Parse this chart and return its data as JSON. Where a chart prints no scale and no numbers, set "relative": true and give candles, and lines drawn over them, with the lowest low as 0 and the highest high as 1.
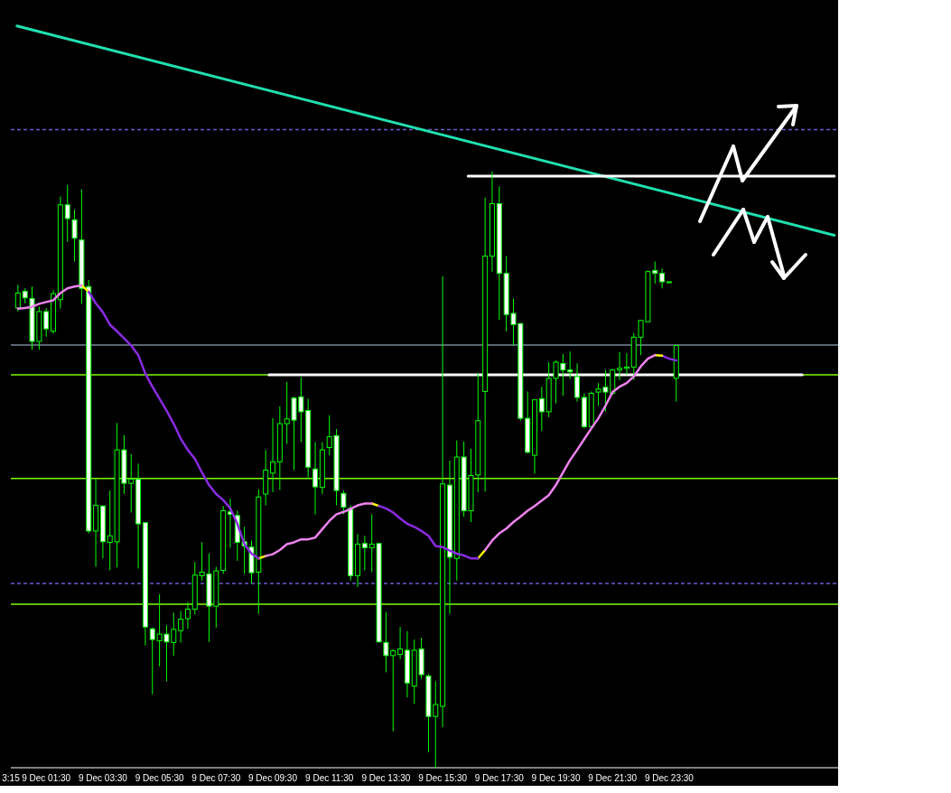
{
  "chart_data": {
    "type": "candlestick",
    "relative": true,
    "marker": "none",
    "line_style": "solid",
    "xlim": [
      "--12-09T00:15",
      "--12-10T05:28"
    ],
    "xticks": [
      {
        "value": "--12-09T00:15",
        "label": "3:15"
      },
      {
        "value": "--12-09T01:30",
        "label": "9 Dec 01:30"
      },
      {
        "value": "--12-09T03:30",
        "label": "9 Dec 03:30"
      },
      {
        "value": "--12-09T05:30",
        "label": "9 Dec 05:30"
      },
      {
        "value": "--12-09T07:30",
        "label": "9 Dec 07:30"
      },
      {
        "value": "--12-09T09:30",
        "label": "9 Dec 09:30"
      },
      {
        "value": "--12-09T11:30",
        "label": "9 Dec 11:30"
      },
      {
        "value": "--12-09T13:30",
        "label": "9 Dec 13:30"
      },
      {
        "value": "--12-09T15:30",
        "label": "9 Dec 15:30"
      },
      {
        "value": "--12-09T17:30",
        "label": "9 Dec 17:30"
      },
      {
        "value": "--12-09T19:30",
        "label": "9 Dec 19:30"
      },
      {
        "value": "--12-09T21:30",
        "label": "9 Dec 21:30"
      },
      {
        "value": "--12-09T23:30",
        "label": "9 Dec 23:30"
      }
    ],
    "x": [
      "--12-09T00:30",
      "--12-09T00:45",
      "--12-09T01:00",
      "--12-09T01:15",
      "--12-09T01:30",
      "--12-09T01:45",
      "--12-09T02:00",
      "--12-09T02:15",
      "--12-09T02:30",
      "--12-09T02:45",
      "--12-09T03:00",
      "--12-09T03:15",
      "--12-09T03:30",
      "--12-09T03:45",
      "--12-09T04:00",
      "--12-09T04:15",
      "--12-09T04:30",
      "--12-09T04:45",
      "--12-09T05:00",
      "--12-09T05:15",
      "--12-09T05:30",
      "--12-09T05:45",
      "--12-09T06:00",
      "--12-09T06:15",
      "--12-09T06:30",
      "--12-09T06:45",
      "--12-09T07:00",
      "--12-09T07:15",
      "--12-09T07:30",
      "--12-09T07:45",
      "--12-09T08:00",
      "--12-09T08:15",
      "--12-09T08:30",
      "--12-09T08:45",
      "--12-09T09:00",
      "--12-09T09:15",
      "--12-09T09:30",
      "--12-09T09:45",
      "--12-09T10:00",
      "--12-09T10:15",
      "--12-09T10:30",
      "--12-09T10:45",
      "--12-09T11:00",
      "--12-09T11:15",
      "--12-09T11:30",
      "--12-09T11:45",
      "--12-09T12:00",
      "--12-09T12:15",
      "--12-09T12:30",
      "--12-09T12:45",
      "--12-09T13:00",
      "--12-09T13:15",
      "--12-09T13:30",
      "--12-09T13:45",
      "--12-09T14:00",
      "--12-09T14:15",
      "--12-09T14:30",
      "--12-09T14:45",
      "--12-09T15:00",
      "--12-09T15:15",
      "--12-09T15:30",
      "--12-09T15:45",
      "--12-09T16:00",
      "--12-09T16:15",
      "--12-09T16:30",
      "--12-09T16:45",
      "--12-09T17:00",
      "--12-09T17:15",
      "--12-09T17:30",
      "--12-09T17:45",
      "--12-09T18:00",
      "--12-09T18:15",
      "--12-09T18:30",
      "--12-09T18:45",
      "--12-09T19:00",
      "--12-09T19:15",
      "--12-09T19:30",
      "--12-09T19:45",
      "--12-09T20:00",
      "--12-09T20:15",
      "--12-09T20:30",
      "--12-09T20:45",
      "--12-09T21:00",
      "--12-09T21:15",
      "--12-09T21:30",
      "--12-09T21:45",
      "--12-09T22:00",
      "--12-09T22:15",
      "--12-09T22:30",
      "--12-09T22:45",
      "--12-09T23:00",
      "--12-09T23:15",
      "--12-09T23:30",
      "--12-09T23:45"
    ],
    "ref_lines": [
      {
        "axis": "y",
        "value": 1.07,
        "color": "#6a5acd",
        "line_style": "dashed"
      },
      {
        "axis": "y",
        "value": 0.709,
        "color": "#778899",
        "line_style": "solid"
      },
      {
        "axis": "y",
        "value": 0.659,
        "color": "#7cfc00",
        "line_style": "solid"
      },
      {
        "axis": "y",
        "value": 0.485,
        "color": "#7cfc00",
        "line_style": "solid"
      },
      {
        "axis": "y",
        "value": 0.309,
        "color": "#6a5acd",
        "line_style": "dashed"
      },
      {
        "axis": "y",
        "value": 0.274,
        "color": "#7cfc00",
        "line_style": "solid"
      }
    ],
    "series": [
      {
        "type": "line",
        "color": "#ee82ee",
        "values": [
          0.77,
          0.771,
          0.773,
          0.778,
          0.781,
          0.784,
          0.796,
          0.804,
          0.807,
          0.809,
          null,
          null,
          null,
          null,
          null,
          null,
          null,
          null,
          null,
          null,
          null,
          null,
          null,
          null,
          null,
          null,
          null,
          null,
          null,
          null,
          null,
          null,
          null,
          null,
          null,
          0.355,
          0.358,
          0.365,
          0.375,
          0.378,
          0.383,
          0.383,
          0.386,
          0.4,
          0.414,
          0.425,
          0.429,
          0.434,
          0.44,
          0.443,
          0.443,
          null,
          null,
          null,
          null,
          null,
          null,
          null,
          null,
          null,
          null,
          null,
          null,
          null,
          null,
          null,
          0.365,
          0.381,
          0.393,
          0.401,
          0.412,
          0.421,
          0.431,
          0.439,
          0.448,
          0.457,
          0.474,
          0.495,
          0.516,
          0.533,
          0.551,
          0.569,
          0.586,
          0.607,
          0.63,
          0.639,
          0.645,
          0.656,
          0.673,
          0.686,
          0.692,
          null,
          null,
          null
        ]
      },
      {
        "type": "line",
        "color": "#8a2be2",
        "values": [
          null,
          null,
          null,
          null,
          null,
          null,
          null,
          null,
          null,
          null,
          0.798,
          0.779,
          0.764,
          0.743,
          0.732,
          0.72,
          0.708,
          0.692,
          0.661,
          0.639,
          0.619,
          0.599,
          0.577,
          0.552,
          0.533,
          0.518,
          0.495,
          0.474,
          0.459,
          0.449,
          0.435,
          0.409,
          0.375,
          0.359,
          0.351,
          null,
          null,
          null,
          null,
          null,
          null,
          null,
          null,
          null,
          null,
          null,
          null,
          null,
          null,
          null,
          null,
          0.439,
          0.435,
          0.428,
          0.418,
          0.409,
          0.404,
          0.397,
          0.389,
          0.372,
          0.37,
          0.364,
          0.359,
          0.356,
          0.351,
          0.351,
          null,
          null,
          null,
          null,
          null,
          null,
          null,
          null,
          null,
          null,
          null,
          null,
          null,
          null,
          null,
          null,
          null,
          null,
          null,
          null,
          null,
          null,
          null,
          null,
          null,
          null,
          null,
          null
        ]
      },
      {
        "type": "line",
        "color": "#ffff00",
        "values": [
          null,
          null,
          null,
          null,
          null,
          null,
          null,
          null,
          null,
          0.809,
          0.798,
          null,
          null,
          null,
          null,
          null,
          null,
          null,
          null,
          null,
          null,
          null,
          null,
          null,
          null,
          null,
          null,
          null,
          null,
          null,
          null,
          null,
          null,
          null,
          0.351,
          0.355,
          null,
          null,
          null,
          null,
          null,
          null,
          null,
          null,
          null,
          null,
          null,
          null,
          null,
          null,
          0.443,
          0.439,
          null,
          null,
          null,
          null,
          null,
          null,
          null,
          null,
          null,
          null,
          null,
          null,
          null,
          0.351,
          0.365,
          null,
          null,
          null,
          null,
          null,
          null,
          null,
          null,
          null,
          null,
          null,
          null,
          null,
          null,
          null,
          null,
          null,
          null,
          null,
          null,
          null,
          null,
          null,
          0.692,
          0.691,
          null,
          null
        ]
      },
      {
        "type": "line",
        "color": "#8a2be2",
        "values": [
          null,
          null,
          null,
          null,
          null,
          null,
          null,
          null,
          null,
          null,
          null,
          null,
          null,
          null,
          null,
          null,
          null,
          null,
          null,
          null,
          null,
          null,
          null,
          null,
          null,
          null,
          null,
          null,
          null,
          null,
          null,
          null,
          null,
          null,
          null,
          null,
          null,
          null,
          null,
          null,
          null,
          null,
          null,
          null,
          null,
          null,
          null,
          null,
          null,
          null,
          null,
          null,
          null,
          null,
          null,
          null,
          null,
          null,
          null,
          null,
          null,
          null,
          null,
          null,
          null,
          null,
          null,
          null,
          null,
          null,
          null,
          null,
          null,
          null,
          null,
          null,
          null,
          null,
          null,
          null,
          null,
          null,
          null,
          null,
          null,
          null,
          null,
          null,
          null,
          null,
          null,
          0.691,
          0.686,
          0.683
        ]
      },
      {
        "type": "line",
        "color": "#20e0b0",
        "x": [
          "--12-09T00:28",
          "--12-10T05:20"
        ],
        "values": [
          1.244,
          0.893
        ]
      },
      {
        "type": "line",
        "color": "#ffffff",
        "x": [
          "--12-09T16:24",
          "--12-10T05:20"
        ],
        "values": [
          0.992,
          0.992
        ]
      },
      {
        "type": "line",
        "color": "#ffffff",
        "x": [
          "--12-09T09:22",
          "--12-10T04:12"
        ],
        "values": [
          0.659,
          0.659
        ]
      },
      {
        "color": "#00ff00",
        "ohlc": [
          [
            0.771,
            0.81,
            0.765,
            0.796
          ],
          [
            0.799,
            0.804,
            0.779,
            0.788
          ],
          [
            0.787,
            0.807,
            0.701,
            0.715
          ],
          [
            0.715,
            0.773,
            0.701,
            0.765
          ],
          [
            0.765,
            0.771,
            0.723,
            0.736
          ],
          [
            0.732,
            0.801,
            0.728,
            0.795
          ],
          [
            0.785,
            0.958,
            0.77,
            0.944
          ],
          [
            0.944,
            0.977,
            0.882,
            0.921
          ],
          [
            0.919,
            0.936,
            0.849,
            0.888
          ],
          [
            0.885,
            0.97,
            0.778,
            0.804
          ],
          [
            0.807,
            0.818,
            0.393,
            0.397
          ],
          [
            0.397,
            0.484,
            0.337,
            0.44
          ],
          [
            0.439,
            0.44,
            0.351,
            0.379
          ],
          [
            0.378,
            0.465,
            0.331,
            0.389
          ],
          [
            0.379,
            0.578,
            0.336,
            0.533
          ],
          [
            0.533,
            0.558,
            0.459,
            0.477
          ],
          [
            0.477,
            0.526,
            0.428,
            0.484
          ],
          [
            0.484,
            0.51,
            0.334,
            0.409
          ],
          [
            0.411,
            0.411,
            0.205,
            0.236
          ],
          [
            0.233,
            0.235,
            0.123,
            0.215
          ],
          [
            0.213,
            0.291,
            0.17,
            0.224
          ],
          [
            0.224,
            0.239,
            0.145,
            0.211
          ],
          [
            0.21,
            0.26,
            0.188,
            0.232
          ],
          [
            0.23,
            0.263,
            0.21,
            0.249
          ],
          [
            0.25,
            0.278,
            0.233,
            0.266
          ],
          [
            0.266,
            0.345,
            0.257,
            0.323
          ],
          [
            0.322,
            0.378,
            0.314,
            0.328
          ],
          [
            0.325,
            0.359,
            0.211,
            0.271
          ],
          [
            0.271,
            0.337,
            0.235,
            0.33
          ],
          [
            0.331,
            0.439,
            0.325,
            0.431
          ],
          [
            0.429,
            0.451,
            0.369,
            0.425
          ],
          [
            0.423,
            0.431,
            0.347,
            0.378
          ],
          [
            0.379,
            0.404,
            0.325,
            0.372
          ],
          [
            0.37,
            0.381,
            0.309,
            0.327
          ],
          [
            0.328,
            0.467,
            0.258,
            0.454
          ],
          [
            0.459,
            0.533,
            0.44,
            0.499
          ],
          [
            0.494,
            0.586,
            0.462,
            0.513
          ],
          [
            0.513,
            0.606,
            0.466,
            0.577
          ],
          [
            0.577,
            0.647,
            0.543,
            0.585
          ],
          [
            0.62,
            0.622,
            0.499,
            0.583
          ],
          [
            0.622,
            0.655,
            0.546,
            0.597
          ],
          [
            0.599,
            0.619,
            0.484,
            0.504
          ],
          [
            0.501,
            0.546,
            0.425,
            0.471
          ],
          [
            0.47,
            0.546,
            0.459,
            0.533
          ],
          [
            0.537,
            0.591,
            0.524,
            0.555
          ],
          [
            0.557,
            0.568,
            0.44,
            0.465
          ],
          [
            0.46,
            0.465,
            0.425,
            0.437
          ],
          [
            0.435,
            0.44,
            0.314,
            0.322
          ],
          [
            0.322,
            0.392,
            0.303,
            0.375
          ],
          [
            0.376,
            0.389,
            0.331,
            0.369
          ],
          [
            0.369,
            0.425,
            0.328,
            0.375
          ],
          [
            0.376,
            0.376,
            0.21,
            0.211
          ],
          [
            0.21,
            0.261,
            0.16,
            0.188
          ],
          [
            0.188,
            0.199,
            0.061,
            0.196
          ],
          [
            0.19,
            0.236,
            0.182,
            0.199
          ],
          [
            0.197,
            0.229,
            0.118,
            0.142
          ],
          [
            0.137,
            0.215,
            0.107,
            0.197
          ],
          [
            0.199,
            0.218,
            0.149,
            0.156
          ],
          [
            0.154,
            0.157,
            0.026,
            0.086
          ],
          [
            0.086,
            0.145,
            0,
            0.106
          ],
          [
            0.103,
            0.824,
            0.068,
            0.476
          ],
          [
            0.474,
            0.515,
            0.258,
            0.353
          ],
          [
            0.351,
            0.549,
            0.314,
            0.521
          ],
          [
            0.521,
            0.547,
            0.421,
            0.431
          ],
          [
            0.431,
            0.535,
            0.412,
            0.49
          ],
          [
            0.491,
            0.662,
            0.462,
            0.582
          ],
          [
            0.631,
            0.956,
            0.463,
            0.858
          ],
          [
            0.858,
            1,
            0.832,
            0.946
          ],
          [
            0.946,
            0.975,
            0.751,
            0.829
          ],
          [
            0.829,
            0.858,
            0.732,
            0.76
          ],
          [
            0.762,
            0.787,
            0.708,
            0.743
          ],
          [
            0.745,
            0.745,
            0.582,
            0.586
          ],
          [
            0.586,
            0.631,
            0.527,
            0.529
          ],
          [
            0.524,
            0.617,
            0.493,
            0.617
          ],
          [
            0.619,
            0.639,
            0.565,
            0.597
          ],
          [
            0.597,
            0.68,
            0.588,
            0.653
          ],
          [
            0.653,
            0.683,
            0.611,
            0.68
          ],
          [
            0.678,
            0.694,
            0.624,
            0.667
          ],
          [
            0.667,
            0.698,
            0.652,
            0.664
          ],
          [
            0.656,
            0.678,
            0.614,
            0.621
          ],
          [
            0.621,
            0.628,
            0.569,
            0.572
          ],
          [
            0.572,
            0.631,
            0.569,
            0.628
          ],
          [
            0.63,
            0.645,
            0.607,
            0.635
          ],
          [
            0.638,
            0.667,
            0.597,
            0.63
          ],
          [
            0.628,
            0.669,
            0.625,
            0.667
          ],
          [
            0.667,
            0.697,
            0.65,
            0.67
          ],
          [
            0.67,
            0.695,
            0.659,
            0.672
          ],
          [
            0.672,
            0.729,
            0.65,
            0.722
          ],
          [
            0.722,
            0.751,
            0.692,
            0.75
          ],
          [
            0.748,
            0.834,
            0.747,
            0.832
          ],
          [
            0.834,
            0.849,
            0.812,
            0.829
          ],
          [
            0.829,
            0.837,
            0.804,
            0.815
          ],
          [
            0.815,
            0.815,
            0.815,
            0.815
          ],
          [
            0.653,
            0.709,
            0.614,
            0.708
          ]
        ]
      }
    ]
  }
}
